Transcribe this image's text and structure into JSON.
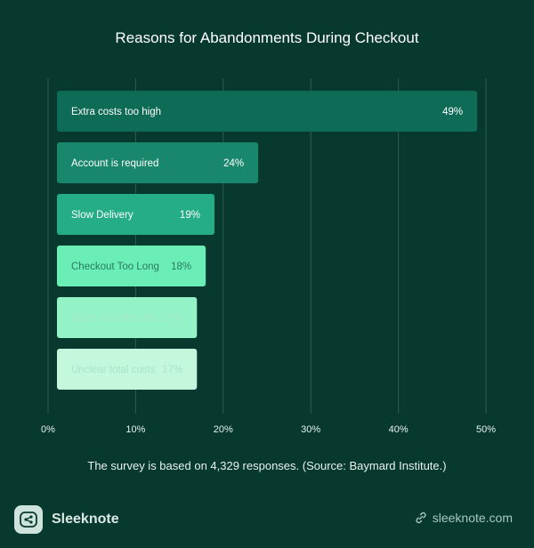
{
  "chart_data": {
    "type": "bar",
    "orientation": "horizontal",
    "title": "Reasons for Abandonments During Checkout",
    "categories": [
      "Extra costs too high",
      "Account is required",
      "Slow Delivery",
      "Checkout Too Long",
      "Didn't trust the site",
      "Unclear total costs"
    ],
    "values": [
      49,
      24,
      19,
      18,
      17,
      17
    ],
    "value_labels": [
      "49%",
      "24%",
      "19%",
      "18%",
      "17%",
      "17%"
    ],
    "bar_colors": [
      "#0e6b56",
      "#18876c",
      "#24ad86",
      "#6bedb6",
      "#94f3c6",
      "#c3f8dd"
    ],
    "label_colors": [
      "#ffffff",
      "#ffffff",
      "#ffffff",
      "#2a7a62",
      "#a5e8ca",
      "#a9e3c9"
    ],
    "xlim": [
      0,
      50
    ],
    "x_ticks": [
      "0%",
      "10%",
      "20%",
      "30%",
      "40%",
      "50%"
    ],
    "grid": true,
    "legend": "none"
  },
  "footnote": "The survey is based on 4,329 responses. (Source: Baymard Institute.)",
  "brand": {
    "name": "Sleeknote",
    "logo_icon": "share-icon"
  },
  "site": {
    "text": "sleeknote.com",
    "icon": "link-icon"
  },
  "colors": {
    "background": "#08392f",
    "gridline": "#2f5d52",
    "tick": "#e6f2ee"
  }
}
